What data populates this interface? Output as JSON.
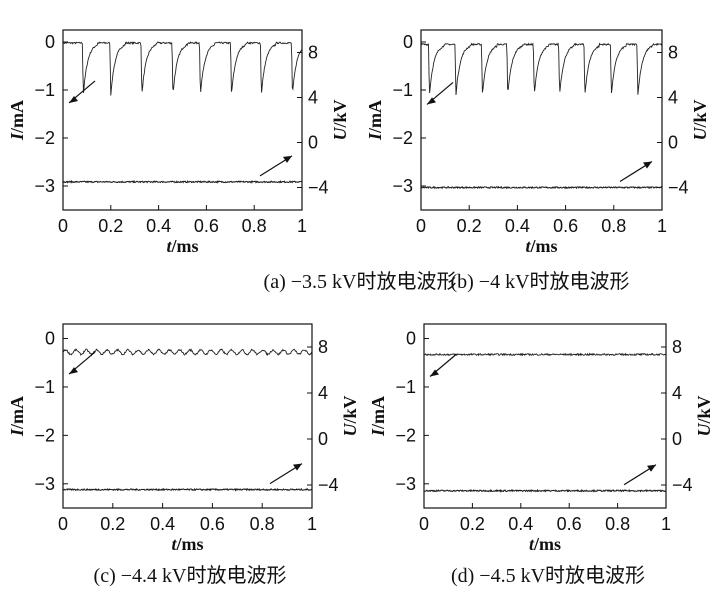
{
  "chart_data": [
    {
      "type": "line",
      "caption": "(a) −3.5 kV时放电波形",
      "xlabel_italic": "t",
      "xlabel_unit": "/ms",
      "ylabel_left_italic": "I",
      "ylabel_left_unit": "/mA",
      "ylabel_right_italic": "U",
      "ylabel_right_unit": "/kV",
      "xlim": [
        0,
        1
      ],
      "ylim_left": [
        -3.5,
        0.25
      ],
      "ylim_right": [
        -6,
        10
      ],
      "xticks": [
        "0",
        "0.2",
        "0.4",
        "0.6",
        "0.8",
        "1"
      ],
      "xtick_values": [
        0,
        0.2,
        0.4,
        0.6,
        0.8,
        1
      ],
      "yticks_left": [
        "0",
        "−1",
        "−2",
        "−3"
      ],
      "ytick_left_values": [
        0,
        -1,
        -2,
        -3
      ],
      "yticks_right": [
        "8",
        "4",
        "0",
        "−4"
      ],
      "ytick_right_values": [
        8,
        4,
        0,
        -4
      ],
      "series": [
        {
          "kind": "current",
          "axis": "left",
          "baseline": -0.02,
          "pulse_times": [
            0.085,
            0.2,
            0.33,
            0.46,
            0.575,
            0.705,
            0.83,
            0.96
          ],
          "pulse_min": -1.1,
          "period_ripple": 0
        },
        {
          "kind": "voltage",
          "axis": "right",
          "level": -3.5
        }
      ]
    },
    {
      "type": "line",
      "caption": "(b) −4 kV时放电波形",
      "xlabel_italic": "t",
      "xlabel_unit": "/ms",
      "ylabel_left_italic": "I",
      "ylabel_left_unit": "/mA",
      "ylabel_right_italic": "U",
      "ylabel_right_unit": "/kV",
      "xlim": [
        0,
        1
      ],
      "ylim_left": [
        -3.5,
        0.25
      ],
      "ylim_right": [
        -6,
        10
      ],
      "xticks": [
        "0",
        "0.2",
        "0.4",
        "0.6",
        "0.8",
        "1"
      ],
      "xtick_values": [
        0,
        0.2,
        0.4,
        0.6,
        0.8,
        1
      ],
      "yticks_left": [
        "0",
        "−1",
        "−2",
        "−3"
      ],
      "ytick_left_values": [
        0,
        -1,
        -2,
        -3
      ],
      "yticks_right": [
        "8",
        "4",
        "0",
        "−4"
      ],
      "ytick_right_values": [
        8,
        4,
        0,
        -4
      ],
      "series": [
        {
          "kind": "current",
          "axis": "left",
          "baseline": -0.05,
          "pulse_times": [
            0.035,
            0.145,
            0.255,
            0.36,
            0.47,
            0.575,
            0.68,
            0.79,
            0.9
          ],
          "pulse_min": -1.1,
          "period_ripple": 0
        },
        {
          "kind": "voltage",
          "axis": "right",
          "level": -4
        }
      ]
    },
    {
      "type": "line",
      "caption": "(c) −4.4 kV时放电波形",
      "xlabel_italic": "t",
      "xlabel_unit": "/ms",
      "ylabel_left_italic": "I",
      "ylabel_left_unit": "/mA",
      "ylabel_right_italic": "U",
      "ylabel_right_unit": "/kV",
      "xlim": [
        0,
        1
      ],
      "ylim_left": [
        -3.5,
        0.3
      ],
      "ylim_right": [
        -6,
        10
      ],
      "xticks": [
        "0",
        "0.2",
        "0.4",
        "0.6",
        "0.8",
        "1"
      ],
      "xtick_values": [
        0,
        0.2,
        0.4,
        0.6,
        0.8,
        1
      ],
      "yticks_left": [
        "0",
        "−1",
        "−2",
        "−3"
      ],
      "ytick_left_values": [
        0,
        -1,
        -2,
        -3
      ],
      "yticks_right": [
        "8",
        "4",
        "0",
        "−4"
      ],
      "ytick_right_values": [
        8,
        4,
        0,
        -4
      ],
      "series": [
        {
          "kind": "current",
          "axis": "left",
          "baseline": -0.28,
          "pulse_times": [],
          "pulse_min": -0.28,
          "period_ripple": 0.045
        },
        {
          "kind": "voltage",
          "axis": "right",
          "level": -4.4
        }
      ]
    },
    {
      "type": "line",
      "caption": "(d) −4.5 kV时放电波形",
      "xlabel_italic": "t",
      "xlabel_unit": "/ms",
      "ylabel_left_italic": "I",
      "ylabel_left_unit": "/mA",
      "ylabel_right_italic": "U",
      "ylabel_right_unit": "/kV",
      "xlim": [
        0,
        1
      ],
      "ylim_left": [
        -3.5,
        0.3
      ],
      "ylim_right": [
        -6,
        10
      ],
      "xticks": [
        "0",
        "0.2",
        "0.4",
        "0.6",
        "0.8",
        "1"
      ],
      "xtick_values": [
        0,
        0.2,
        0.4,
        0.6,
        0.8,
        1
      ],
      "yticks_left": [
        "0",
        "−1",
        "−2",
        "−3"
      ],
      "ytick_left_values": [
        0,
        -1,
        -2,
        -3
      ],
      "yticks_right": [
        "8",
        "4",
        "0",
        "−4"
      ],
      "ytick_right_values": [
        8,
        4,
        0,
        -4
      ],
      "series": [
        {
          "kind": "current",
          "axis": "left",
          "baseline": -0.33,
          "pulse_times": [],
          "pulse_min": -0.33,
          "period_ripple": 0
        },
        {
          "kind": "voltage",
          "axis": "right",
          "level": -4.5
        }
      ]
    }
  ]
}
